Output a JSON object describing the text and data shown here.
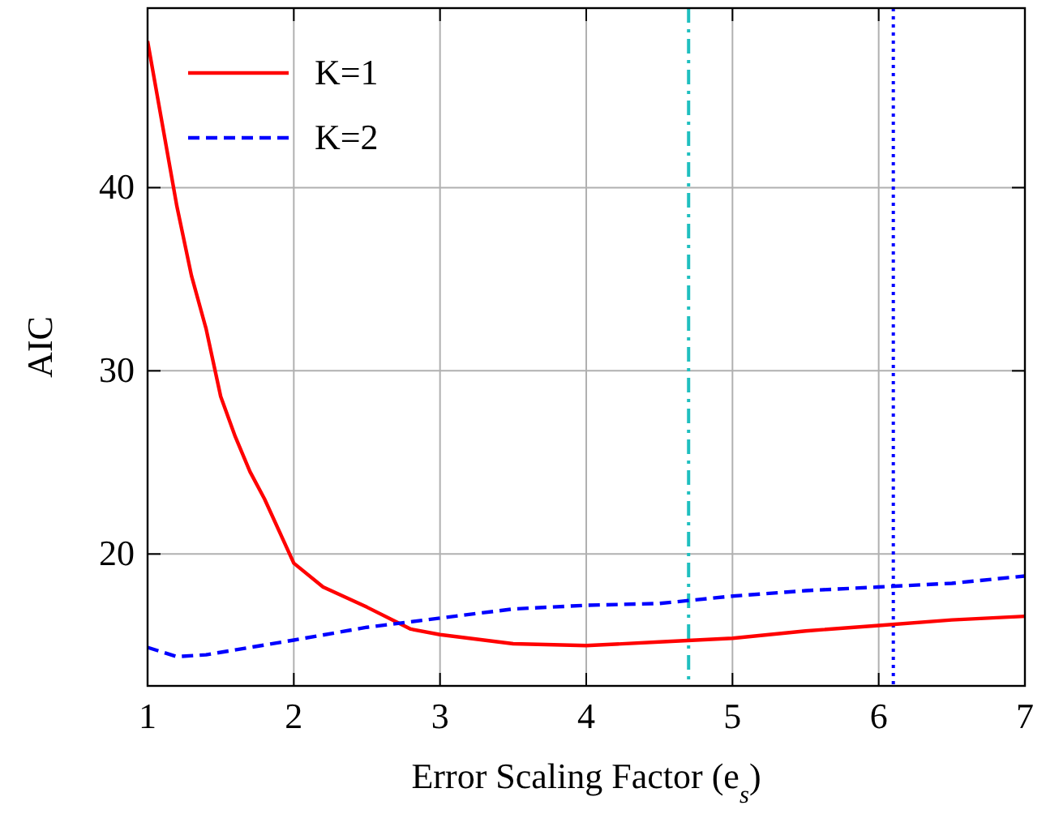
{
  "chart_data": {
    "type": "line",
    "xlabel": "Error Scaling Factor (e$_{s}$)",
    "ylabel": "AIC",
    "xlim": [
      1,
      7
    ],
    "ylim": [
      12.8,
      49.8
    ],
    "xticks": [
      1,
      2,
      3,
      4,
      5,
      6,
      7
    ],
    "yticks": [
      20,
      30,
      40
    ],
    "grid": true,
    "legend": "top left",
    "series": [
      {
        "name": "K=1",
        "color": "#ff0000",
        "line_style": "solid",
        "x": [
          1,
          1.1,
          1.2,
          1.3,
          1.4,
          1.5,
          1.6,
          1.7,
          1.8,
          2,
          2.2,
          2.5,
          2.8,
          3,
          3.5,
          4,
          4.5,
          5,
          5.5,
          6,
          6.5,
          7
        ],
        "values": [
          48,
          43.5,
          39,
          35.2,
          32.3,
          28.6,
          26.4,
          24.5,
          23,
          19.5,
          18.2,
          17.1,
          15.9,
          15.6,
          15.1,
          15,
          15.2,
          15.4,
          15.8,
          16.1,
          16.4,
          16.6
        ]
      },
      {
        "name": "K=2",
        "color": "#0000ff",
        "line_style": "dashed",
        "x": [
          1,
          1.2,
          1.4,
          1.7,
          2,
          2.5,
          3,
          3.5,
          4,
          4.5,
          5,
          5.5,
          6,
          6.5,
          7
        ],
        "values": [
          14.9,
          14.4,
          14.5,
          14.9,
          15.3,
          16,
          16.5,
          17,
          17.2,
          17.3,
          17.7,
          18,
          18.2,
          18.4,
          18.8
        ]
      }
    ],
    "ref_lines": [
      {
        "axis": "x",
        "value": 4.7,
        "color": "#1fbfbf",
        "line_style": "dashdot"
      },
      {
        "axis": "x",
        "value": 6.1,
        "color": "#0000ff",
        "line_style": "dotted"
      }
    ]
  }
}
